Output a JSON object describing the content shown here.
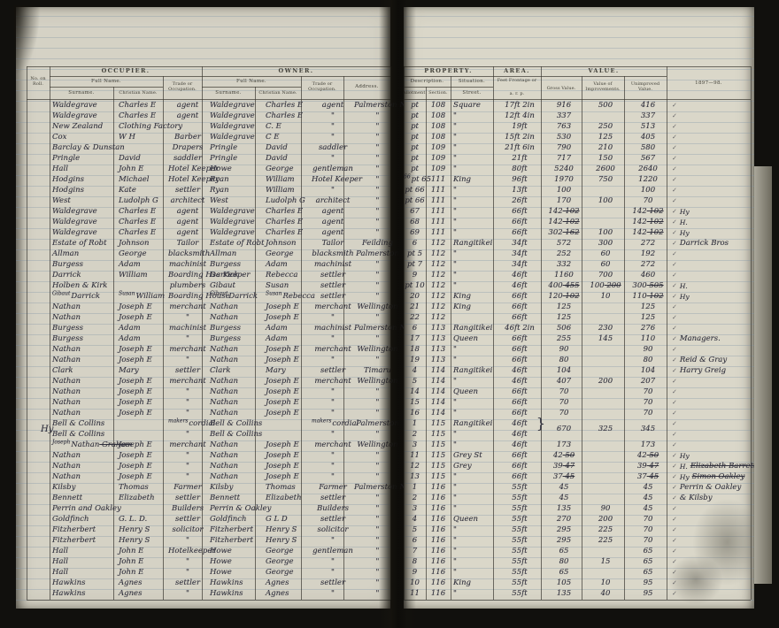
{
  "headers": {
    "no_on_roll": "No. on Roll.",
    "occupier": "OCCUPIER.",
    "owner": "OWNER.",
    "full_name": "Full Name.",
    "surname": "Surname.",
    "christian_name": "Christian Name.",
    "trade": "Trade or Occupation.",
    "address": "Address.",
    "property": "PROPERTY.",
    "area": "AREA.",
    "value": "VALUE.",
    "description": "Description.",
    "situation": "Situation.",
    "allotment": "Allotment.",
    "section": "Section.",
    "street": "Street.",
    "feet_frontage": "Feet Frontage or",
    "arp": "a. r. p.",
    "gross_value": "Gross Value.",
    "value_improvements": "Value of Improvements.",
    "unimproved_value": "Unimproved Value.",
    "year": "1897—98."
  },
  "colors": {
    "ink": "#32323e",
    "paper_left": "#d5d2c5",
    "paper_right": "#dad7c9",
    "background": "#11100d"
  },
  "margin_notes": {
    "left": "Hy"
  },
  "left_rows": [
    [
      "Waldegrave",
      "Charles E",
      "agent",
      "Waldegrave",
      "Charles E",
      "agent",
      "Palmerston N"
    ],
    [
      "Waldegrave",
      "Charles E",
      "agent",
      "Waldegrave",
      "Charles E",
      "\"",
      "\""
    ],
    [
      "New Zealand",
      "Clothing Factory",
      "",
      "Waldegrave",
      "C. E",
      "\"",
      "\""
    ],
    [
      "Cox",
      "W H",
      "Barber",
      "Waldegrave",
      "C E",
      "\"",
      "\""
    ],
    [
      "Barclay & Dunstan",
      "",
      "Drapers",
      "Pringle",
      "David",
      "saddler",
      "\""
    ],
    [
      "Pringle",
      "David",
      "saddler",
      "Pringle",
      "David",
      "\"",
      "\""
    ],
    [
      "Hall",
      "John E",
      "Hotel Keeper",
      "Howe",
      "George",
      "gentleman",
      "\""
    ],
    [
      "Hodgins",
      "Michael",
      "Hotel Keeper",
      "Ryan",
      "William",
      "Hotel Keeper",
      "\""
    ],
    [
      "Hodgins",
      "Kate",
      "settler",
      "Ryan",
      "William",
      "\"",
      "\""
    ],
    [
      "West",
      "Ludolph G",
      "architect",
      "West",
      "Ludolph G",
      "architect",
      "\""
    ],
    [
      "Waldegrave",
      "Charles E",
      "agent",
      "Waldegrave",
      "Charles E",
      "agent",
      "\""
    ],
    [
      "Waldegrave",
      "Charles E",
      "agent",
      "Waldegrave",
      "Charles E",
      "agent",
      "\""
    ],
    [
      "Waldegrave",
      "Charles E",
      "agent",
      "Waldegrave",
      "Charles E",
      "agent",
      "\""
    ],
    [
      "Estate of Robt",
      "Johnson",
      "Tailor",
      "Estate of Robt",
      "Johnson",
      "Tailor",
      "Feilding"
    ],
    [
      "Allman",
      "George",
      "blacksmith",
      "Allman",
      "George",
      "blacksmith",
      "Palmerston"
    ],
    [
      "Burgess",
      "Adam",
      "machinist",
      "Burgess",
      "Adam",
      "machinist",
      "\""
    ],
    [
      "Darrick",
      "William",
      "Boarding Hse Keeper",
      "Darrick",
      "Rebecca",
      "settler",
      "\""
    ],
    [
      "Holben & Kirk",
      "",
      "plumbers",
      "Gibaut",
      "Susan",
      "settler",
      "\""
    ],
    [
      {
        "m": "Darrick",
        "u": "Gibaut"
      },
      {
        "m": "William",
        "u": "Susan"
      },
      "Boarding House",
      {
        "m": "Darrick",
        "u": "Gibaut"
      },
      {
        "m": "Rebecca",
        "u": "Susan"
      },
      "settler",
      "\""
    ],
    [
      "Nathan",
      "Joseph E",
      "merchant",
      "Nathan",
      "Joseph E",
      "merchant",
      "Wellington"
    ],
    [
      "Nathan",
      "Joseph E",
      "\"",
      "Nathan",
      "Joseph E",
      "\"",
      "\""
    ],
    [
      "Burgess",
      "Adam",
      "machinist",
      "Burgess",
      "Adam",
      "machinist",
      "Palmerston N"
    ],
    [
      "Burgess",
      "Adam",
      "\"",
      "Burgess",
      "Adam",
      "\"",
      "\""
    ],
    [
      "Nathan",
      "Joseph E",
      "merchant",
      "Nathan",
      "Joseph E",
      "merchant",
      "Wellington"
    ],
    [
      "Nathan",
      "Joseph E",
      "\"",
      "Nathan",
      "Joseph E",
      "\"",
      "\""
    ],
    [
      "Clark",
      "Mary",
      "settler",
      "Clark",
      "Mary",
      "settler",
      "Timaru"
    ],
    [
      "Nathan",
      "Joseph E",
      "merchant",
      "Nathan",
      "Joseph E",
      "merchant",
      "Wellington"
    ],
    [
      "Nathan",
      "Joseph E",
      "\"",
      "Nathan",
      "Joseph E",
      "\"",
      "\""
    ],
    [
      "Nathan",
      "Joseph E",
      "\"",
      "Nathan",
      "Joseph E",
      "\"",
      "\""
    ],
    [
      "Nathan",
      "Joseph E",
      "\"",
      "Nathan",
      "Joseph E",
      "\"",
      "\""
    ],
    [
      "Bell & Collins",
      "",
      {
        "m": "cordial",
        "u": "makers"
      },
      "Bell & Collins",
      "",
      {
        "m": "cordial",
        "u": "makers"
      },
      "Palmerston"
    ],
    [
      "Bell & Collins",
      "",
      "\"",
      "Bell & Collins",
      "",
      "\"",
      "\""
    ],
    [
      {
        "m": "Nathan",
        "s": "Graham",
        "u": "Joseph"
      },
      "Joseph E",
      "merchant",
      "Nathan",
      "Joseph E",
      "merchant",
      "Wellington"
    ],
    [
      "Nathan",
      "Joseph E",
      "\"",
      "Nathan",
      "Joseph E",
      "\"",
      "\""
    ],
    [
      "Nathan",
      "Joseph E",
      "\"",
      "Nathan",
      "Joseph E",
      "\"",
      "\""
    ],
    [
      "Nathan",
      "Joseph E",
      "\"",
      "Nathan",
      "Joseph E",
      "\"",
      "\""
    ],
    [
      "Kilsby",
      "Thomas",
      "Farmer",
      "Kilsby",
      "Thomas",
      "Farmer",
      "Palmerston N"
    ],
    [
      "Bennett",
      "Elizabeth",
      "settler",
      "Bennett",
      "Elizabeth",
      "settler",
      "\""
    ],
    [
      "Perrin and Oakley",
      "",
      "Builders",
      "Perrin & Oakley",
      "",
      "Builders",
      "\""
    ],
    [
      "Goldfinch",
      "G. L. D.",
      "settler",
      "Goldfinch",
      "G L D",
      "settler",
      "\""
    ],
    [
      "Fitzherbert",
      "Henry S",
      "solicitor",
      "Fitzherbert",
      "Henry S",
      "solicitor",
      "\""
    ],
    [
      "Fitzherbert",
      "Henry S",
      "\"",
      "Fitzherbert",
      "Henry S",
      "\"",
      "\""
    ],
    [
      "Hall",
      "John E",
      "Hotelkeeper",
      "Howe",
      "George",
      "gentleman",
      "\""
    ],
    [
      "Hall",
      "John E",
      "\"",
      "Howe",
      "George",
      "\"",
      "\""
    ],
    [
      "Hall",
      "John E",
      "\"",
      "Howe",
      "George",
      "\"",
      "\""
    ],
    [
      "Hawkins",
      "Agnes",
      "settler",
      "Hawkins",
      "Agnes",
      "settler",
      "\""
    ],
    [
      "Hawkins",
      "Agnes",
      "\"",
      "Hawkins",
      "Agnes",
      "\"",
      "\""
    ]
  ],
  "right_rows": [
    {
      "c": [
        "pt",
        "108",
        "Square",
        "17ft 2in",
        "916",
        "500",
        "416"
      ]
    },
    {
      "c": [
        "pt",
        "108",
        "\"",
        "12ft 4in",
        "337",
        "",
        "337"
      ]
    },
    {
      "c": [
        "pt",
        "108",
        "\"",
        "19ft",
        "763",
        "250",
        "513"
      ]
    },
    {
      "c": [
        "pt",
        "108",
        "\"",
        "15ft 2in",
        "530",
        "125",
        "405"
      ]
    },
    {
      "c": [
        "pt",
        "109",
        "\"",
        "21ft 6in",
        "790",
        "210",
        "580"
      ]
    },
    {
      "c": [
        "pt",
        "109",
        "\"",
        "21ft",
        "717",
        "150",
        "567"
      ]
    },
    {
      "c": [
        "pt",
        "109",
        "\"",
        "80ft",
        "5240",
        "2600",
        "2640"
      ]
    },
    {
      "c": [
        {
          "m": "pt 65",
          "u": "66"
        },
        "111",
        "King",
        "96ft",
        "1970",
        "750",
        "1220"
      ]
    },
    {
      "c": [
        "pt 66",
        "111",
        "\"",
        "13ft",
        "100",
        "",
        "100"
      ]
    },
    {
      "c": [
        "pt 66",
        "111",
        "\"",
        "26ft",
        "170",
        "100",
        "70"
      ]
    },
    {
      "c": [
        "67",
        "111",
        "\"",
        "66ft",
        {
          "m": "142",
          "s": "102"
        },
        "",
        {
          "m": "142",
          "s": "102"
        }
      ],
      "n": "Hy"
    },
    {
      "c": [
        "68",
        "111",
        "\"",
        "66ft",
        {
          "m": "142",
          "s": "102"
        },
        "",
        {
          "m": "142",
          "s": "102"
        }
      ],
      "n": "H."
    },
    {
      "c": [
        "69",
        "111",
        "\"",
        "66ft",
        {
          "m": "302",
          "s": "162"
        },
        "100",
        {
          "m": "142",
          "s": "102"
        }
      ],
      "n": "Hy"
    },
    {
      "c": [
        "6",
        "112",
        "Rangitikei",
        "34ft",
        "572",
        "300",
        "272"
      ],
      "r": "Darrick Bros"
    },
    {
      "c": [
        "pt 5",
        "112",
        "\"",
        "34ft",
        "252",
        "60",
        "192"
      ]
    },
    {
      "c": [
        "pt 7",
        "112",
        "\"",
        "34ft",
        "332",
        "60",
        "272"
      ]
    },
    {
      "c": [
        "9",
        "112",
        "\"",
        "46ft",
        "1160",
        "700",
        "460"
      ]
    },
    {
      "c": [
        "pt 10",
        "112",
        "\"",
        "46ft",
        {
          "m": "400",
          "s": "455"
        },
        {
          "m": "100",
          "s": "200"
        },
        {
          "m": "300",
          "s": "505"
        }
      ],
      "n": "H."
    },
    {
      "c": [
        "20",
        "112",
        "King",
        "66ft",
        {
          "m": "120",
          "s": "102"
        },
        "10",
        {
          "m": "110",
          "s": "102"
        }
      ],
      "n": "Hy"
    },
    {
      "c": [
        "21",
        "112",
        "King",
        "66ft",
        "125",
        "",
        "125"
      ]
    },
    {
      "c": [
        "22",
        "112",
        "",
        "66ft",
        "125",
        "",
        "125"
      ]
    },
    {
      "c": [
        "6",
        "113",
        "Rangitikei",
        "46ft 2in",
        "506",
        "230",
        "276"
      ]
    },
    {
      "c": [
        "17",
        "113",
        "Queen",
        "66ft",
        "255",
        "145",
        "110"
      ],
      "r": "Managers."
    },
    {
      "c": [
        "18",
        "113",
        "\"",
        "66ft",
        "90",
        "",
        "90"
      ]
    },
    {
      "c": [
        "19",
        "113",
        "\"",
        "66ft",
        "80",
        "",
        "80"
      ],
      "r": "Reid & Gray"
    },
    {
      "c": [
        "4",
        "114",
        "Rangitikei",
        "46ft",
        "104",
        "",
        "104"
      ],
      "r": "Harry Greig"
    },
    {
      "c": [
        "5",
        "114",
        "\"",
        "46ft",
        "407",
        "200",
        "207"
      ]
    },
    {
      "c": [
        "14",
        "114",
        "Queen",
        "66ft",
        "70",
        "",
        "70"
      ]
    },
    {
      "c": [
        "15",
        "114",
        "\"",
        "66ft",
        "70",
        "",
        "70"
      ]
    },
    {
      "c": [
        "16",
        "114",
        "\"",
        "66ft",
        "70",
        "",
        "70"
      ]
    },
    {
      "c": [
        "1",
        "115",
        "Rangitikei",
        "46ft",
        "670",
        "325",
        "345"
      ],
      "br": 1,
      "down": 1
    },
    {
      "c": [
        "2",
        "115",
        "\"",
        "46ft",
        "",
        "",
        ""
      ]
    },
    {
      "c": [
        "3",
        "115",
        "\"",
        "46ft",
        "173",
        "",
        "173"
      ]
    },
    {
      "c": [
        "11",
        "115",
        "Grey St",
        "66ft",
        {
          "m": "42",
          "s": "50"
        },
        "",
        {
          "m": "42",
          "s": "50"
        }
      ],
      "n": "Hy"
    },
    {
      "c": [
        "12",
        "115",
        "Grey",
        "66ft",
        {
          "m": "39",
          "s": "47"
        },
        "",
        {
          "m": "39",
          "s": "47"
        }
      ],
      "n": "H.",
      "r": "Elizabeth Barrett",
      "rs": 1
    },
    {
      "c": [
        "13",
        "115",
        "\"",
        "66ft",
        {
          "m": "37",
          "s": "45"
        },
        "",
        {
          "m": "37",
          "s": "45"
        }
      ],
      "n": "Hy",
      "r": "Simon Oakley",
      "rs": 1
    },
    {
      "c": [
        "1",
        "116",
        "\"",
        "55ft",
        "45",
        "",
        "45"
      ],
      "r": "Perrin & Oakley"
    },
    {
      "c": [
        "2",
        "116",
        "\"",
        "55ft",
        "45",
        "",
        "45"
      ],
      "r": "& Kilsby"
    },
    {
      "c": [
        "3",
        "116",
        "\"",
        "55ft",
        "135",
        "90",
        "45"
      ]
    },
    {
      "c": [
        "4",
        "116",
        "Queen",
        "55ft",
        "270",
        "200",
        "70"
      ]
    },
    {
      "c": [
        "5",
        "116",
        "\"",
        "55ft",
        "295",
        "225",
        "70"
      ]
    },
    {
      "c": [
        "6",
        "116",
        "\"",
        "55ft",
        "295",
        "225",
        "70"
      ]
    },
    {
      "c": [
        "7",
        "116",
        "\"",
        "55ft",
        "65",
        "",
        "65"
      ]
    },
    {
      "c": [
        "8",
        "116",
        "\"",
        "55ft",
        "80",
        "15",
        "65"
      ]
    },
    {
      "c": [
        "9",
        "116",
        "\"",
        "55ft",
        "65",
        "",
        "65"
      ]
    },
    {
      "c": [
        "10",
        "116",
        "King",
        "55ft",
        "105",
        "10",
        "95"
      ]
    },
    {
      "c": [
        "11",
        "116",
        "\"",
        "55ft",
        "135",
        "40",
        "95"
      ]
    }
  ]
}
